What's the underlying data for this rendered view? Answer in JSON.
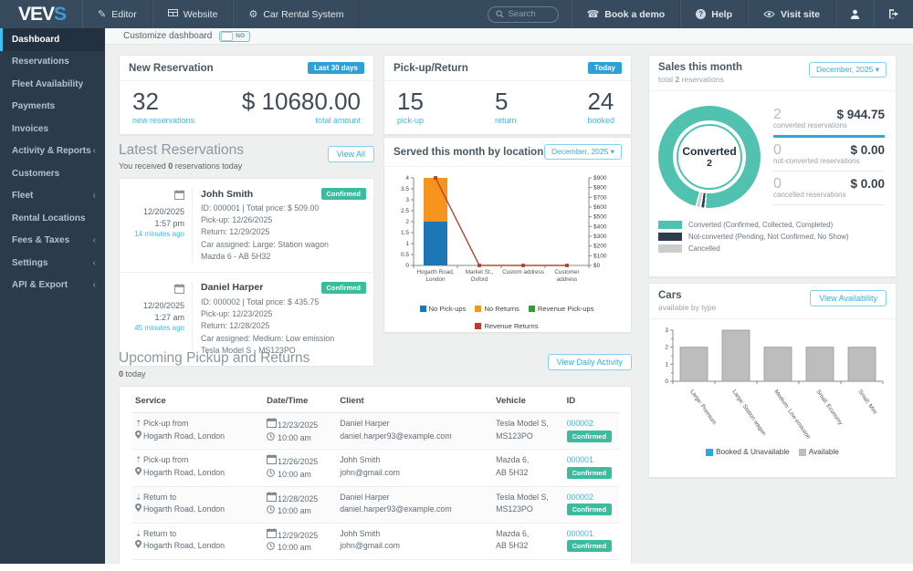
{
  "navbar": {
    "logo_primary": "VEV",
    "logo_accent": "S",
    "menu": {
      "editor": "Editor",
      "website": "Website",
      "system": "Car Rental System"
    },
    "search_placeholder": "Search",
    "book_demo": "Book a demo",
    "help": "Help",
    "visit_site": "Visit site"
  },
  "sidebar": {
    "items": [
      {
        "label": "Dashboard",
        "active": true,
        "chevron": false
      },
      {
        "label": "Reservations",
        "active": false,
        "chevron": false
      },
      {
        "label": "Fleet Availability",
        "active": false,
        "chevron": false
      },
      {
        "label": "Payments",
        "active": false,
        "chevron": false
      },
      {
        "label": "Invoices",
        "active": false,
        "chevron": false
      },
      {
        "label": "Activity & Reports",
        "active": false,
        "chevron": true
      },
      {
        "label": "Customers",
        "active": false,
        "chevron": false
      },
      {
        "label": "Fleet",
        "active": false,
        "chevron": true
      },
      {
        "label": "Rental Locations",
        "active": false,
        "chevron": false
      },
      {
        "label": "Fees & Taxes",
        "active": false,
        "chevron": true
      },
      {
        "label": "Settings",
        "active": false,
        "chevron": true
      },
      {
        "label": "API & Export",
        "active": false,
        "chevron": true
      }
    ]
  },
  "customize": {
    "label": "Customize dashboard",
    "toggle": "NO"
  },
  "new_reservation": {
    "title": "New Reservation",
    "badge": "Last 30 days",
    "count": "32",
    "count_label": "new reservations",
    "amount": "$ 10680.00",
    "amount_label": "total amount"
  },
  "pickup_return": {
    "title": "Pick-up/Return",
    "badge": "Today",
    "stats": [
      {
        "value": "15",
        "label": "pick-up"
      },
      {
        "value": "5",
        "label": "return"
      },
      {
        "value": "24",
        "label": "booked"
      }
    ]
  },
  "sales": {
    "title": "Sales this month",
    "subtitle_pre": "total",
    "subtitle_bold": "2",
    "subtitle_post": "reservations",
    "period": "December, 2025",
    "rows": [
      {
        "count": "2",
        "label": "converted reservations",
        "amount": "$ 944.75",
        "accent": true
      },
      {
        "count": "0",
        "label": "not-converted reservations",
        "amount": "$ 0.00",
        "accent": false
      },
      {
        "count": "0",
        "label": "cancelled reservations",
        "amount": "$ 0.00",
        "accent": false
      }
    ]
  },
  "latest": {
    "title": "Latest Reservations",
    "subtitle_pre": "You received",
    "subtitle_bold": "0",
    "subtitle_post": "reservations today",
    "button": "View All",
    "entries": [
      {
        "date": "12/20/2025",
        "time": "1:57 pm",
        "ago": "14 minutes ago",
        "name": "Johh Smith",
        "status": "Confirmed",
        "lines": [
          "ID: 000001  |  Total price: $ 509.00",
          "Pick-up: 12/26/2025",
          "Return: 12/29/2025",
          "Car assigned: Large: Station wagon",
          "Mazda 6 - AB 5H32"
        ]
      },
      {
        "date": "12/20/2025",
        "time": "1:27 am",
        "ago": "45 minutes ago",
        "name": "Daniel Harper",
        "status": "Confirmed",
        "lines": [
          "ID: 000002  |  Total price: $ 435.75",
          "Pick-up: 12/23/2025",
          "Return: 12/28/2025",
          "Car assigned: Medium: Low emission",
          "Tesla Model S - MS123PO"
        ]
      }
    ]
  },
  "served": {
    "title": "Served this month by location",
    "period": "December, 2025"
  },
  "cars": {
    "title": "Cars",
    "subtitle": "available by type",
    "button": "View Availability"
  },
  "upcoming": {
    "title": "Upcoming Pickup and Returns",
    "subtitle_bold": "0",
    "subtitle_post": "today",
    "button": "View Daily Activity",
    "table": {
      "headers": [
        "Service",
        "Date/Time",
        "Client",
        "Vehicle",
        "ID"
      ],
      "rows": [
        {
          "icon": "pickup-arrow-icon",
          "service": "Pick-up from",
          "location": "Hogarth Road, London",
          "date": "12/23/2025",
          "time": "10:00 am",
          "client": "Daniel Harper",
          "email": "daniel.harper93@example.com",
          "vehicle_line1": "Tesla Model S,",
          "vehicle_line2": "MS123PO",
          "id": "000002",
          "status": "Confirmed"
        },
        {
          "icon": "pickup-arrow-icon",
          "service": "Pick-up from",
          "location": "Hogarth Road, London",
          "date": "12/26/2025",
          "time": "10:00 am",
          "client": "Johh Smith",
          "email": "john@gmail.com",
          "vehicle_line1": "Mazda 6,",
          "vehicle_line2": "AB 5H32",
          "id": "000001",
          "status": "Confirmed"
        },
        {
          "icon": "return-arrow-icon",
          "service": "Return to",
          "location": "Hogarth Road, London",
          "date": "12/28/2025",
          "time": "10:00 am",
          "client": "Daniel Harper",
          "email": "daniel.harper93@example.com",
          "vehicle_line1": "Tesla Model S,",
          "vehicle_line2": "MS123PO",
          "id": "000002",
          "status": "Confirmed"
        },
        {
          "icon": "return-arrow-icon",
          "service": "Return to",
          "location": "Hogarth Road, London",
          "date": "12/29/2025",
          "time": "10:00 am",
          "client": "Johh Smith",
          "email": "john@gmail.com",
          "vehicle_line1": "Mazda 6,",
          "vehicle_line2": "AB 5H32",
          "id": "000001",
          "status": "Confirmed"
        }
      ]
    }
  },
  "colors": {
    "accent_blue": "#2f9fd8",
    "link_blue": "#41b9e6",
    "teal": "#52c2b0",
    "badge_green": "#3cbc9e",
    "navy": "#2c3e50",
    "gray_swatch": "#cccccc"
  },
  "chart_data": [
    {
      "id": "served_by_location",
      "type": "bar",
      "title": "Served this month by location",
      "categories": [
        "Hogarth Road,\nLondon",
        "Market St.,\nOxford",
        "Custom address",
        "Customer\naddress"
      ],
      "bar_series": [
        {
          "name": "No Pick-ups",
          "color": "#1c77b4",
          "values": [
            2,
            0,
            0,
            0
          ]
        },
        {
          "name": "No Returns",
          "color": "#f7941d",
          "values": [
            2,
            0,
            0,
            0
          ]
        }
      ],
      "line_series": [
        {
          "name": "Revenue Pick-ups",
          "color": "#2ca02c",
          "values": [
            944.75,
            0,
            0,
            0
          ]
        },
        {
          "name": "Revenue Returns",
          "color": "#c0392b",
          "values": [
            944.75,
            0,
            0,
            0
          ]
        }
      ],
      "left_axis": {
        "min": 0,
        "max": 4,
        "step": 0.5
      },
      "right_axis": {
        "min": 0,
        "max": 900,
        "step": 100,
        "prefix": "$"
      },
      "legend_position": "bottom"
    },
    {
      "id": "cars_by_type",
      "type": "bar",
      "title": "Cars available by type",
      "categories": [
        "Large: Premium",
        "Large: Station wagon",
        "Medium: Low emission",
        "Small: Economy",
        "Small: Mini"
      ],
      "series": [
        {
          "name": "Booked & Unavailable",
          "color": "#29abe2",
          "values": [
            0,
            0,
            0,
            0,
            0
          ]
        },
        {
          "name": "Available",
          "color": "#bdbdbd",
          "values": [
            2,
            3,
            2,
            2,
            2
          ]
        }
      ],
      "yaxis": {
        "min": 0,
        "max": 3,
        "step": 1
      },
      "legend_position": "bottom"
    },
    {
      "id": "sales_donut",
      "type": "pie",
      "center_label": "Converted",
      "center_value": "2",
      "segments": [
        {
          "label": "Converted (Confirmed, Collected, Completed)",
          "value": 2,
          "color": "#52c2b0"
        },
        {
          "label": "Not-converted (Pending, Not Confirmed, No Show)",
          "value": 0,
          "color": "#2c3e50"
        },
        {
          "label": "Cancelled",
          "value": 0,
          "color": "#cccccc"
        }
      ]
    }
  ]
}
